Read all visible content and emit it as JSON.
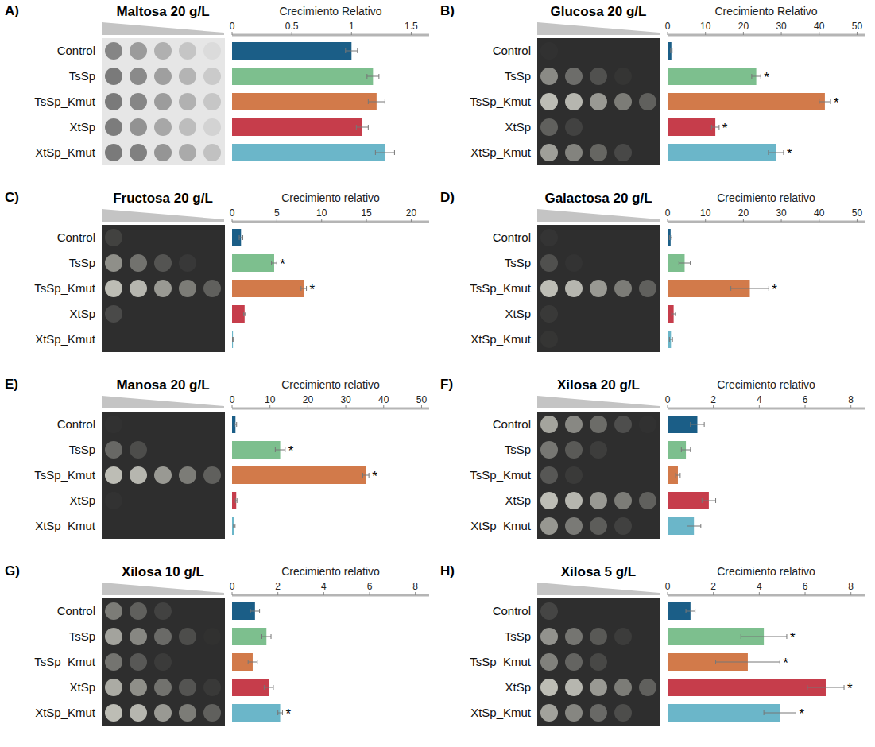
{
  "chart_data": [
    {
      "type": "bar",
      "orientation": "horizontal",
      "panel_label": "A)",
      "title": "Maltosa 20 g/L",
      "x_label": "Crecimiento Relativo",
      "categories": [
        "Control",
        "TsSp",
        "TsSp_Kmut",
        "XtSp",
        "XtSp_Kmut"
      ],
      "values": [
        1.0,
        1.18,
        1.21,
        1.09,
        1.28
      ],
      "errors": [
        0.05,
        0.05,
        0.07,
        0.05,
        0.08
      ],
      "significance": [
        null,
        null,
        null,
        null,
        null
      ],
      "colors": [
        "#1b5e87",
        "#7dbf8e",
        "#d27a4a",
        "#c63d4b",
        "#6bb6c9"
      ],
      "xlim": [
        0,
        1.65
      ],
      "xticks": [
        0,
        0.5,
        1,
        1.5
      ],
      "grid": false
    },
    {
      "type": "bar",
      "orientation": "horizontal",
      "panel_label": "B)",
      "title": "Glucosa 20 g/L",
      "x_label": "Crecimiento Relativo",
      "categories": [
        "Control",
        "TsSp",
        "TsSp_Kmut",
        "XtSp",
        "XtSp_Kmut"
      ],
      "values": [
        1.0,
        23.4,
        41.5,
        12.6,
        28.6
      ],
      "errors": [
        0.2,
        1.2,
        1.5,
        1.0,
        2.0
      ],
      "significance": [
        null,
        "*",
        "*",
        "*",
        "*"
      ],
      "colors": [
        "#1b5e87",
        "#7dbf8e",
        "#d27a4a",
        "#c63d4b",
        "#6bb6c9"
      ],
      "xlim": [
        0,
        52
      ],
      "xticks": [
        0,
        10,
        20,
        30,
        40,
        50
      ],
      "grid": false
    },
    {
      "type": "bar",
      "orientation": "horizontal",
      "panel_label": "C)",
      "title": "Fructosa  20 g/L",
      "x_label": "Crecimiento relativo",
      "categories": [
        "Control",
        "TsSp",
        "TsSp_Kmut",
        "XtSp",
        "XtSp_Kmut"
      ],
      "values": [
        1.0,
        4.7,
        8.0,
        1.4,
        0.1
      ],
      "errors": [
        0.2,
        0.3,
        0.3,
        0.1,
        0.05
      ],
      "significance": [
        null,
        "*",
        "*",
        null,
        null
      ],
      "colors": [
        "#1b5e87",
        "#7dbf8e",
        "#d27a4a",
        "#c63d4b",
        "#6bb6c9"
      ],
      "xlim": [
        0,
        22
      ],
      "xticks": [
        0,
        5,
        10,
        15,
        20
      ],
      "grid": false
    },
    {
      "type": "bar",
      "orientation": "horizontal",
      "panel_label": "D)",
      "title": "Galactosa  20 g/L",
      "x_label": "Crecimiento relativo",
      "categories": [
        "Control",
        "TsSp",
        "TsSp_Kmut",
        "XtSp",
        "XtSp_Kmut"
      ],
      "values": [
        0.8,
        4.5,
        21.7,
        1.6,
        0.9
      ],
      "errors": [
        0.3,
        1.5,
        5.0,
        0.5,
        0.4
      ],
      "significance": [
        null,
        null,
        "*",
        null,
        null
      ],
      "colors": [
        "#1b5e87",
        "#7dbf8e",
        "#d27a4a",
        "#c63d4b",
        "#6bb6c9"
      ],
      "xlim": [
        0,
        52
      ],
      "xticks": [
        0,
        10,
        20,
        30,
        40,
        50
      ],
      "grid": false
    },
    {
      "type": "bar",
      "orientation": "horizontal",
      "panel_label": "E)",
      "title": "Manosa  20 g/L",
      "x_label": "Crecimiento relativo",
      "categories": [
        "Control",
        "TsSp",
        "TsSp_Kmut",
        "XtSp",
        "XtSp_Kmut"
      ],
      "values": [
        0.9,
        12.7,
        35.3,
        1.1,
        0.6
      ],
      "errors": [
        0.3,
        1.3,
        0.8,
        0.2,
        0.2
      ],
      "significance": [
        null,
        "*",
        "*",
        null,
        null
      ],
      "colors": [
        "#1b5e87",
        "#7dbf8e",
        "#d27a4a",
        "#c63d4b",
        "#6bb6c9"
      ],
      "xlim": [
        0,
        52
      ],
      "xticks": [
        0,
        10,
        20,
        30,
        40,
        50
      ],
      "grid": false
    },
    {
      "type": "bar",
      "orientation": "horizontal",
      "panel_label": "F)",
      "title": "Xilosa  20 g/L",
      "x_label": "Crecimiento relativo",
      "categories": [
        "Control",
        "TsSp",
        "TsSp_Kmut",
        "XtSp",
        "XtSp_Kmut"
      ],
      "values": [
        1.3,
        0.8,
        0.45,
        1.8,
        1.15
      ],
      "errors": [
        0.3,
        0.2,
        0.1,
        0.3,
        0.3
      ],
      "significance": [
        null,
        null,
        null,
        null,
        null
      ],
      "colors": [
        "#1b5e87",
        "#7dbf8e",
        "#d27a4a",
        "#c63d4b",
        "#6bb6c9"
      ],
      "xlim": [
        0,
        8.6
      ],
      "xticks": [
        0,
        2,
        4,
        6,
        8
      ],
      "grid": false
    },
    {
      "type": "bar",
      "orientation": "horizontal",
      "panel_label": "G)",
      "title": "Xilosa 10 g/L",
      "x_label": "Crecimiento relativo",
      "categories": [
        "Control",
        "TsSp",
        "TsSp_Kmut",
        "XtSp",
        "XtSp_Kmut"
      ],
      "values": [
        1.0,
        1.5,
        0.9,
        1.6,
        2.1
      ],
      "errors": [
        0.2,
        0.2,
        0.2,
        0.2,
        0.1
      ],
      "significance": [
        null,
        null,
        null,
        null,
        "*"
      ],
      "colors": [
        "#1b5e87",
        "#7dbf8e",
        "#d27a4a",
        "#c63d4b",
        "#6bb6c9"
      ],
      "xlim": [
        0,
        8.6
      ],
      "xticks": [
        0,
        2,
        4,
        6,
        8
      ],
      "grid": false
    },
    {
      "type": "bar",
      "orientation": "horizontal",
      "panel_label": "H)",
      "title": "Xilosa 5 g/L",
      "x_label": "Crecimiento relativo",
      "categories": [
        "Control",
        "TsSp",
        "TsSp_Kmut",
        "XtSp",
        "XtSp_Kmut"
      ],
      "values": [
        1.0,
        4.2,
        3.5,
        6.9,
        4.9
      ],
      "errors": [
        0.2,
        1.0,
        1.4,
        0.8,
        0.7
      ],
      "significance": [
        null,
        "*",
        "*",
        "*",
        "*"
      ],
      "colors": [
        "#1b5e87",
        "#7dbf8e",
        "#d27a4a",
        "#c63d4b",
        "#6bb6c9"
      ],
      "xlim": [
        0,
        8.6
      ],
      "xticks": [
        0,
        2,
        4,
        6,
        8
      ],
      "grid": false
    }
  ]
}
